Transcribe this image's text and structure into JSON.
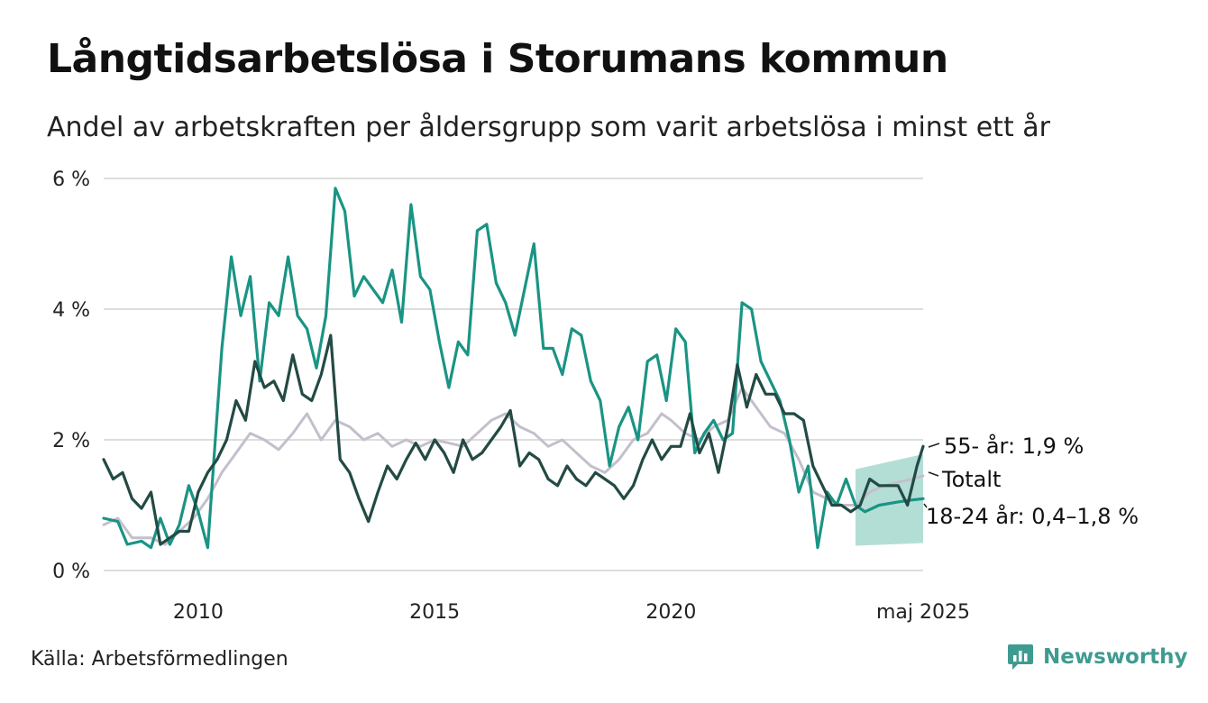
{
  "header": {
    "title": "Långtidsarbetslösa i Storumans kommun",
    "subtitle": "Andel av arbetskraften per åldersgrupp som varit arbetslösa i minst ett år"
  },
  "footer": {
    "source": "Källa: Arbetsförmedlingen",
    "brand": "Newsworthy"
  },
  "colors": {
    "youth": "#1a9484",
    "older": "#234a44",
    "total": "#c4bfcc",
    "band": "#a6d8cf",
    "grid": "#dddddd"
  },
  "chart_data": {
    "type": "line",
    "x_unit": "year",
    "xlim": [
      2008.0,
      2025.33
    ],
    "ylim": [
      0,
      6
    ],
    "y_ticks": [
      {
        "value": 0,
        "label": "0 %"
      },
      {
        "value": 2,
        "label": "2 %"
      },
      {
        "value": 4,
        "label": "4 %"
      },
      {
        "value": 6,
        "label": "6 %"
      }
    ],
    "x_ticks": [
      {
        "value": 2010,
        "label": "2010"
      },
      {
        "value": 2015,
        "label": "2015"
      },
      {
        "value": 2020,
        "label": "2020"
      },
      {
        "value": 2025.33,
        "label": "maj 2025"
      }
    ],
    "grid": true,
    "series": [
      {
        "key": "total",
        "label": "Totalt",
        "color": "#c4bfcc",
        "points": [
          [
            2008.0,
            0.7
          ],
          [
            2008.3,
            0.8
          ],
          [
            2008.6,
            0.5
          ],
          [
            2009.0,
            0.5
          ],
          [
            2009.3,
            0.4
          ],
          [
            2009.6,
            0.6
          ],
          [
            2009.9,
            0.8
          ],
          [
            2010.2,
            1.1
          ],
          [
            2010.5,
            1.5
          ],
          [
            2010.8,
            1.8
          ],
          [
            2011.1,
            2.1
          ],
          [
            2011.4,
            2.0
          ],
          [
            2011.7,
            1.85
          ],
          [
            2012.0,
            2.1
          ],
          [
            2012.3,
            2.4
          ],
          [
            2012.6,
            2.0
          ],
          [
            2012.9,
            2.3
          ],
          [
            2013.2,
            2.2
          ],
          [
            2013.5,
            2.0
          ],
          [
            2013.8,
            2.1
          ],
          [
            2014.1,
            1.9
          ],
          [
            2014.4,
            2.0
          ],
          [
            2014.7,
            1.9
          ],
          [
            2015.0,
            2.0
          ],
          [
            2015.3,
            1.95
          ],
          [
            2015.6,
            1.9
          ],
          [
            2015.9,
            2.1
          ],
          [
            2016.2,
            2.3
          ],
          [
            2016.5,
            2.4
          ],
          [
            2016.8,
            2.2
          ],
          [
            2017.1,
            2.1
          ],
          [
            2017.4,
            1.9
          ],
          [
            2017.7,
            2.0
          ],
          [
            2018.0,
            1.8
          ],
          [
            2018.3,
            1.6
          ],
          [
            2018.6,
            1.5
          ],
          [
            2018.9,
            1.7
          ],
          [
            2019.2,
            2.0
          ],
          [
            2019.5,
            2.1
          ],
          [
            2019.8,
            2.4
          ],
          [
            2020.0,
            2.3
          ],
          [
            2020.3,
            2.1
          ],
          [
            2020.6,
            2.0
          ],
          [
            2020.9,
            2.2
          ],
          [
            2021.2,
            2.3
          ],
          [
            2021.5,
            2.8
          ],
          [
            2021.8,
            2.5
          ],
          [
            2022.1,
            2.2
          ],
          [
            2022.4,
            2.1
          ],
          [
            2022.7,
            1.7
          ],
          [
            2023.0,
            1.2
          ],
          [
            2023.3,
            1.1
          ],
          [
            2023.6,
            1.0
          ],
          [
            2023.9,
            1.0
          ],
          [
            2024.2,
            1.2
          ],
          [
            2024.5,
            1.3
          ],
          [
            2024.8,
            1.35
          ],
          [
            2025.1,
            1.4
          ],
          [
            2025.33,
            1.45
          ]
        ]
      },
      {
        "key": "youth",
        "label": "18-24 år",
        "end_label": "18-24 år: 0,4–1,8 %",
        "color": "#1a9484",
        "points": [
          [
            2008.0,
            0.8
          ],
          [
            2008.3,
            0.75
          ],
          [
            2008.5,
            0.4
          ],
          [
            2008.8,
            0.45
          ],
          [
            2009.0,
            0.35
          ],
          [
            2009.2,
            0.8
          ],
          [
            2009.4,
            0.4
          ],
          [
            2009.6,
            0.7
          ],
          [
            2009.8,
            1.3
          ],
          [
            2010.0,
            0.9
          ],
          [
            2010.2,
            0.35
          ],
          [
            2010.35,
            1.9
          ],
          [
            2010.5,
            3.4
          ],
          [
            2010.7,
            4.8
          ],
          [
            2010.9,
            3.9
          ],
          [
            2011.1,
            4.5
          ],
          [
            2011.3,
            2.9
          ],
          [
            2011.5,
            4.1
          ],
          [
            2011.7,
            3.9
          ],
          [
            2011.9,
            4.8
          ],
          [
            2012.1,
            3.9
          ],
          [
            2012.3,
            3.7
          ],
          [
            2012.5,
            3.1
          ],
          [
            2012.7,
            3.9
          ],
          [
            2012.9,
            5.85
          ],
          [
            2013.1,
            5.5
          ],
          [
            2013.3,
            4.2
          ],
          [
            2013.5,
            4.5
          ],
          [
            2013.7,
            4.3
          ],
          [
            2013.9,
            4.1
          ],
          [
            2014.1,
            4.6
          ],
          [
            2014.3,
            3.8
          ],
          [
            2014.5,
            5.6
          ],
          [
            2014.7,
            4.5
          ],
          [
            2014.9,
            4.3
          ],
          [
            2015.1,
            3.5
          ],
          [
            2015.3,
            2.8
          ],
          [
            2015.5,
            3.5
          ],
          [
            2015.7,
            3.3
          ],
          [
            2015.9,
            5.2
          ],
          [
            2016.1,
            5.3
          ],
          [
            2016.3,
            4.4
          ],
          [
            2016.5,
            4.1
          ],
          [
            2016.7,
            3.6
          ],
          [
            2016.9,
            4.3
          ],
          [
            2017.1,
            5.0
          ],
          [
            2017.3,
            3.4
          ],
          [
            2017.5,
            3.4
          ],
          [
            2017.7,
            3.0
          ],
          [
            2017.9,
            3.7
          ],
          [
            2018.1,
            3.6
          ],
          [
            2018.3,
            2.9
          ],
          [
            2018.5,
            2.6
          ],
          [
            2018.7,
            1.6
          ],
          [
            2018.9,
            2.2
          ],
          [
            2019.1,
            2.5
          ],
          [
            2019.3,
            2.0
          ],
          [
            2019.5,
            3.2
          ],
          [
            2019.7,
            3.3
          ],
          [
            2019.9,
            2.6
          ],
          [
            2020.1,
            3.7
          ],
          [
            2020.3,
            3.5
          ],
          [
            2020.5,
            1.8
          ],
          [
            2020.7,
            2.1
          ],
          [
            2020.9,
            2.3
          ],
          [
            2021.1,
            2.0
          ],
          [
            2021.3,
            2.1
          ],
          [
            2021.5,
            4.1
          ],
          [
            2021.7,
            4.0
          ],
          [
            2021.9,
            3.2
          ],
          [
            2022.1,
            2.9
          ],
          [
            2022.3,
            2.6
          ],
          [
            2022.5,
            2.0
          ],
          [
            2022.7,
            1.2
          ],
          [
            2022.9,
            1.6
          ],
          [
            2023.1,
            0.35
          ],
          [
            2023.3,
            1.2
          ],
          [
            2023.5,
            1.0
          ],
          [
            2023.7,
            1.4
          ],
          [
            2023.9,
            1.0
          ],
          [
            2024.1,
            0.9
          ],
          [
            2024.4,
            1.0
          ],
          [
            2024.8,
            1.05
          ],
          [
            2025.1,
            1.08
          ],
          [
            2025.33,
            1.1
          ]
        ]
      },
      {
        "key": "older",
        "label": "55- år",
        "end_label": "55- år: 1,9 %",
        "color": "#234a44",
        "points": [
          [
            2008.0,
            1.7
          ],
          [
            2008.2,
            1.4
          ],
          [
            2008.4,
            1.5
          ],
          [
            2008.6,
            1.1
          ],
          [
            2008.8,
            0.95
          ],
          [
            2009.0,
            1.2
          ],
          [
            2009.2,
            0.4
          ],
          [
            2009.4,
            0.5
          ],
          [
            2009.6,
            0.6
          ],
          [
            2009.8,
            0.6
          ],
          [
            2010.0,
            1.2
          ],
          [
            2010.2,
            1.5
          ],
          [
            2010.4,
            1.7
          ],
          [
            2010.6,
            2.0
          ],
          [
            2010.8,
            2.6
          ],
          [
            2011.0,
            2.3
          ],
          [
            2011.2,
            3.2
          ],
          [
            2011.4,
            2.8
          ],
          [
            2011.6,
            2.9
          ],
          [
            2011.8,
            2.6
          ],
          [
            2012.0,
            3.3
          ],
          [
            2012.2,
            2.7
          ],
          [
            2012.4,
            2.6
          ],
          [
            2012.6,
            3.0
          ],
          [
            2012.8,
            3.6
          ],
          [
            2013.0,
            1.7
          ],
          [
            2013.2,
            1.5
          ],
          [
            2013.4,
            1.1
          ],
          [
            2013.6,
            0.75
          ],
          [
            2013.8,
            1.2
          ],
          [
            2014.0,
            1.6
          ],
          [
            2014.2,
            1.4
          ],
          [
            2014.4,
            1.7
          ],
          [
            2014.6,
            1.95
          ],
          [
            2014.8,
            1.7
          ],
          [
            2015.0,
            2.0
          ],
          [
            2015.2,
            1.8
          ],
          [
            2015.4,
            1.5
          ],
          [
            2015.6,
            2.0
          ],
          [
            2015.8,
            1.7
          ],
          [
            2016.0,
            1.8
          ],
          [
            2016.2,
            2.0
          ],
          [
            2016.4,
            2.2
          ],
          [
            2016.6,
            2.45
          ],
          [
            2016.8,
            1.6
          ],
          [
            2017.0,
            1.8
          ],
          [
            2017.2,
            1.7
          ],
          [
            2017.4,
            1.4
          ],
          [
            2017.6,
            1.3
          ],
          [
            2017.8,
            1.6
          ],
          [
            2018.0,
            1.4
          ],
          [
            2018.2,
            1.3
          ],
          [
            2018.4,
            1.5
          ],
          [
            2018.6,
            1.4
          ],
          [
            2018.8,
            1.3
          ],
          [
            2019.0,
            1.1
          ],
          [
            2019.2,
            1.3
          ],
          [
            2019.4,
            1.7
          ],
          [
            2019.6,
            2.0
          ],
          [
            2019.8,
            1.7
          ],
          [
            2020.0,
            1.9
          ],
          [
            2020.2,
            1.9
          ],
          [
            2020.4,
            2.4
          ],
          [
            2020.6,
            1.8
          ],
          [
            2020.8,
            2.1
          ],
          [
            2021.0,
            1.5
          ],
          [
            2021.2,
            2.2
          ],
          [
            2021.4,
            3.15
          ],
          [
            2021.6,
            2.5
          ],
          [
            2021.8,
            3.0
          ],
          [
            2022.0,
            2.7
          ],
          [
            2022.2,
            2.7
          ],
          [
            2022.4,
            2.4
          ],
          [
            2022.6,
            2.4
          ],
          [
            2022.8,
            2.3
          ],
          [
            2023.0,
            1.6
          ],
          [
            2023.2,
            1.3
          ],
          [
            2023.4,
            1.0
          ],
          [
            2023.6,
            1.0
          ],
          [
            2023.8,
            0.9
          ],
          [
            2024.0,
            1.0
          ],
          [
            2024.2,
            1.4
          ],
          [
            2024.4,
            1.3
          ],
          [
            2024.6,
            1.3
          ],
          [
            2024.8,
            1.3
          ],
          [
            2025.0,
            1.0
          ],
          [
            2025.2,
            1.6
          ],
          [
            2025.33,
            1.9
          ]
        ]
      }
    ],
    "band": {
      "series": "youth",
      "x": [
        2023.9,
        2025.33
      ],
      "lower": [
        0.38,
        0.42
      ],
      "upper": [
        1.55,
        1.78
      ]
    }
  }
}
